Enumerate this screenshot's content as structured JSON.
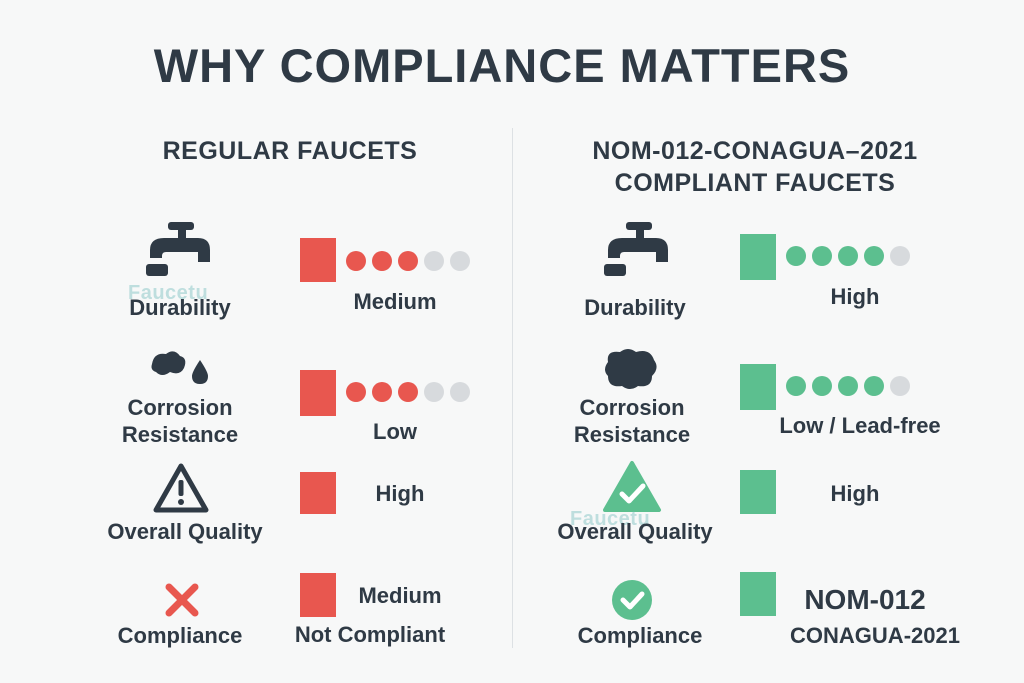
{
  "title": "WHY COMPLIANCE MATTERS",
  "watermark": "Faucetu",
  "colors": {
    "red": "#e8574f",
    "green": "#5cbf8f",
    "dark": "#2f3a45",
    "grey": "#d7dadd"
  },
  "left": {
    "heading": "REGULAR FAUCETS",
    "rows": [
      {
        "icon": "faucet-icon",
        "label": "Durability",
        "value": "Medium",
        "rating": 3,
        "rating_max": 5
      },
      {
        "icon": "corrosion-icon",
        "label_line1": "Corrosion",
        "label_line2": "Resistance",
        "value": "Low",
        "rating": 3,
        "rating_max": 5
      },
      {
        "icon": "warning-icon",
        "label": "Overall Quality",
        "value": "High"
      },
      {
        "icon": "x-icon",
        "label": "Compliance",
        "value_line1": "Medium",
        "value_line2": "Not Compliant"
      }
    ]
  },
  "right": {
    "heading_line1": "NOM-012-CONAGUA–2021",
    "heading_line2": "COMPLIANT FAUCETS",
    "rows": [
      {
        "icon": "faucet-icon",
        "label": "Durability",
        "value": "High",
        "rating": 4,
        "rating_max": 5
      },
      {
        "icon": "corrosion-icon",
        "label_line1": "Corrosion",
        "label_line2": "Resistance",
        "value": "Low / Lead-free",
        "rating": 4,
        "rating_max": 5
      },
      {
        "icon": "check-triangle-icon",
        "label": "Overall Quality",
        "value": "High"
      },
      {
        "icon": "check-circle-icon",
        "label": "Compliance",
        "value_line1": "NOM-012",
        "value_line2": "CONAGUA-2021"
      }
    ]
  }
}
